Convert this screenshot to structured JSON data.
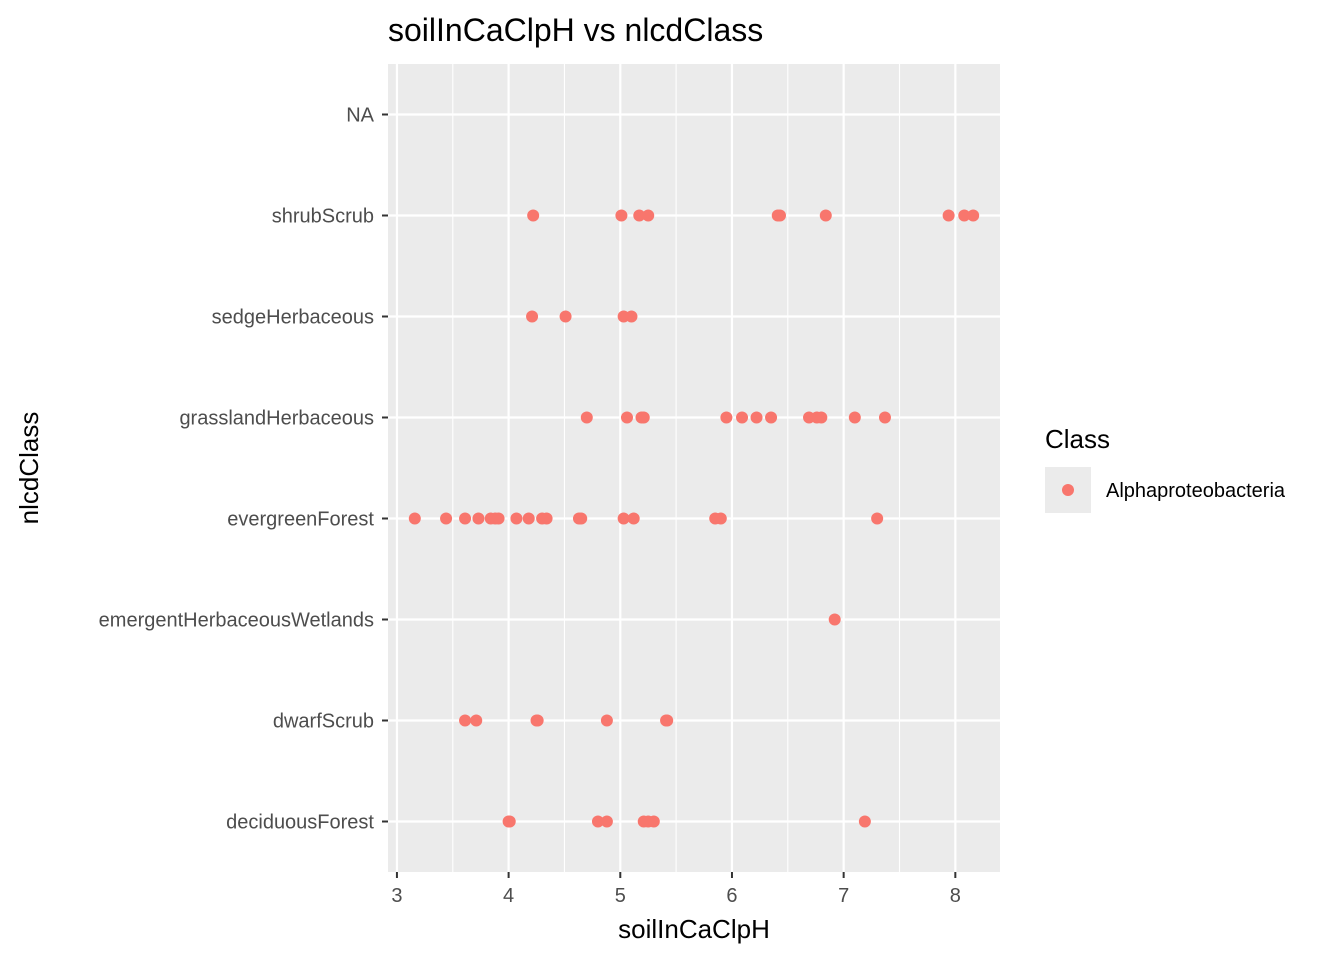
{
  "chart_data": {
    "type": "scatter",
    "title": "soilInCaClpH vs nlcdClass",
    "xlabel": "soilInCaClpH",
    "ylabel": "nlcdClass",
    "xlim": [
      2.92,
      8.4
    ],
    "xticks": [
      3,
      4,
      5,
      6,
      7,
      8
    ],
    "categories": [
      "deciduousForest",
      "dwarfScrub",
      "emergentHerbaceousWetlands",
      "evergreenForest",
      "grasslandHerbaceous",
      "sedgeHerbaceous",
      "shrubScrub",
      "NA"
    ],
    "grid": true,
    "legend": {
      "title": "Class",
      "placement": "right"
    },
    "series": [
      {
        "name": "Alphaproteobacteria",
        "color": "#F8766D",
        "points": [
          {
            "x": 4.0,
            "y": "deciduousForest"
          },
          {
            "x": 4.01,
            "y": "deciduousForest"
          },
          {
            "x": 4.8,
            "y": "deciduousForest"
          },
          {
            "x": 4.88,
            "y": "deciduousForest"
          },
          {
            "x": 5.21,
            "y": "deciduousForest"
          },
          {
            "x": 5.25,
            "y": "deciduousForest"
          },
          {
            "x": 5.3,
            "y": "deciduousForest"
          },
          {
            "x": 7.19,
            "y": "deciduousForest"
          },
          {
            "x": 3.61,
            "y": "dwarfScrub"
          },
          {
            "x": 3.71,
            "y": "dwarfScrub"
          },
          {
            "x": 4.25,
            "y": "dwarfScrub"
          },
          {
            "x": 4.26,
            "y": "dwarfScrub"
          },
          {
            "x": 4.88,
            "y": "dwarfScrub"
          },
          {
            "x": 5.41,
            "y": "dwarfScrub"
          },
          {
            "x": 5.42,
            "y": "dwarfScrub"
          },
          {
            "x": 6.92,
            "y": "emergentHerbaceousWetlands"
          },
          {
            "x": 3.16,
            "y": "evergreenForest"
          },
          {
            "x": 3.44,
            "y": "evergreenForest"
          },
          {
            "x": 3.61,
            "y": "evergreenForest"
          },
          {
            "x": 3.73,
            "y": "evergreenForest"
          },
          {
            "x": 3.84,
            "y": "evergreenForest"
          },
          {
            "x": 3.88,
            "y": "evergreenForest"
          },
          {
            "x": 3.91,
            "y": "evergreenForest"
          },
          {
            "x": 4.07,
            "y": "evergreenForest"
          },
          {
            "x": 4.18,
            "y": "evergreenForest"
          },
          {
            "x": 4.3,
            "y": "evergreenForest"
          },
          {
            "x": 4.34,
            "y": "evergreenForest"
          },
          {
            "x": 4.63,
            "y": "evergreenForest"
          },
          {
            "x": 4.65,
            "y": "evergreenForest"
          },
          {
            "x": 5.03,
            "y": "evergreenForest"
          },
          {
            "x": 5.12,
            "y": "evergreenForest"
          },
          {
            "x": 5.85,
            "y": "evergreenForest"
          },
          {
            "x": 5.9,
            "y": "evergreenForest"
          },
          {
            "x": 7.3,
            "y": "evergreenForest"
          },
          {
            "x": 4.7,
            "y": "grasslandHerbaceous"
          },
          {
            "x": 5.06,
            "y": "grasslandHerbaceous"
          },
          {
            "x": 5.19,
            "y": "grasslandHerbaceous"
          },
          {
            "x": 5.21,
            "y": "grasslandHerbaceous"
          },
          {
            "x": 5.95,
            "y": "grasslandHerbaceous"
          },
          {
            "x": 6.09,
            "y": "grasslandHerbaceous"
          },
          {
            "x": 6.22,
            "y": "grasslandHerbaceous"
          },
          {
            "x": 6.35,
            "y": "grasslandHerbaceous"
          },
          {
            "x": 6.69,
            "y": "grasslandHerbaceous"
          },
          {
            "x": 6.76,
            "y": "grasslandHerbaceous"
          },
          {
            "x": 6.8,
            "y": "grasslandHerbaceous"
          },
          {
            "x": 7.1,
            "y": "grasslandHerbaceous"
          },
          {
            "x": 7.37,
            "y": "grasslandHerbaceous"
          },
          {
            "x": 4.21,
            "y": "sedgeHerbaceous"
          },
          {
            "x": 4.51,
            "y": "sedgeHerbaceous"
          },
          {
            "x": 5.03,
            "y": "sedgeHerbaceous"
          },
          {
            "x": 5.1,
            "y": "sedgeHerbaceous"
          },
          {
            "x": 4.22,
            "y": "shrubScrub"
          },
          {
            "x": 5.01,
            "y": "shrubScrub"
          },
          {
            "x": 5.17,
            "y": "shrubScrub"
          },
          {
            "x": 5.25,
            "y": "shrubScrub"
          },
          {
            "x": 6.41,
            "y": "shrubScrub"
          },
          {
            "x": 6.43,
            "y": "shrubScrub"
          },
          {
            "x": 6.84,
            "y": "shrubScrub"
          },
          {
            "x": 7.94,
            "y": "shrubScrub"
          },
          {
            "x": 8.08,
            "y": "shrubScrub"
          },
          {
            "x": 8.16,
            "y": "shrubScrub"
          }
        ]
      }
    ]
  }
}
